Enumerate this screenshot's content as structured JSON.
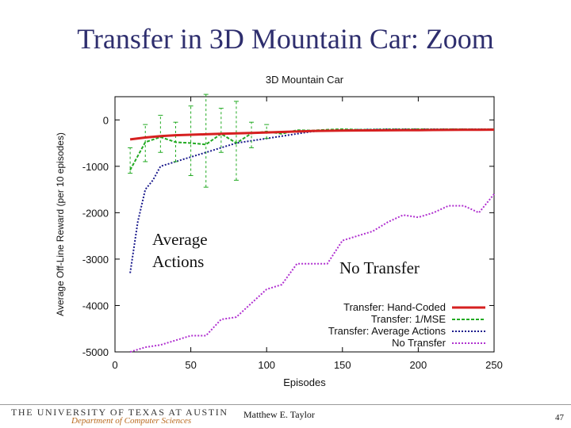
{
  "slide": {
    "title": "Transfer in 3D Mountain Car: Zoom",
    "annotation_left": "Average Actions",
    "annotation_right": "No Transfer"
  },
  "footer": {
    "university": "THE UNIVERSITY OF TEXAS AT AUSTIN",
    "department": "Department of Computer Sciences",
    "author": "Matthew E. Taylor",
    "page": "47"
  },
  "chart_data": {
    "type": "line",
    "title": "3D Mountain Car",
    "xlabel": "Episodes",
    "ylabel": "Average Off-Line Reward (per 10 episodes)",
    "xlim": [
      0,
      250
    ],
    "ylim": [
      -5000,
      500
    ],
    "xticks": [
      0,
      50,
      100,
      150,
      200,
      250
    ],
    "yticks": [
      0,
      -1000,
      -2000,
      -3000,
      -4000,
      -5000
    ],
    "legend_position": "bottom-right",
    "series": [
      {
        "name": "Transfer: Hand-Coded",
        "color": "#d62020",
        "style": "solid",
        "width": 3,
        "x": [
          10,
          20,
          30,
          40,
          50,
          60,
          70,
          80,
          90,
          100,
          110,
          120,
          130,
          140,
          150,
          160,
          170,
          180,
          190,
          200,
          210,
          220,
          230,
          240,
          250
        ],
        "y": [
          -420,
          -380,
          -350,
          -330,
          -320,
          -310,
          -300,
          -290,
          -280,
          -270,
          -260,
          -250,
          -240,
          -235,
          -230,
          -228,
          -226,
          -224,
          -222,
          -220,
          -218,
          -216,
          -214,
          -212,
          -210
        ]
      },
      {
        "name": "Transfer: 1/MSE",
        "color": "#22aa22",
        "style": "dashed",
        "width": 2,
        "x": [
          10,
          20,
          30,
          40,
          50,
          60,
          70,
          80,
          90,
          100,
          110,
          120,
          130,
          140,
          150,
          160,
          170,
          180,
          190,
          200,
          210,
          220,
          230,
          240,
          250
        ],
        "y": [
          -1080,
          -480,
          -370,
          -480,
          -500,
          -530,
          -300,
          -500,
          -290,
          -250,
          -300,
          -220,
          -230,
          -210,
          -200,
          -210,
          -210,
          -205,
          -205,
          -200,
          -205,
          -200,
          -200,
          -205,
          -200
        ],
        "error_bars": [
          {
            "x": 10,
            "low": -1150,
            "high": -600
          },
          {
            "x": 20,
            "low": -900,
            "high": -100
          },
          {
            "x": 30,
            "low": -700,
            "high": 100
          },
          {
            "x": 40,
            "low": -900,
            "high": -50
          },
          {
            "x": 50,
            "low": -1200,
            "high": 300
          },
          {
            "x": 60,
            "low": -1450,
            "high": 550
          },
          {
            "x": 70,
            "low": -700,
            "high": 250
          },
          {
            "x": 80,
            "low": -1300,
            "high": 400
          },
          {
            "x": 90,
            "low": -600,
            "high": -50
          },
          {
            "x": 100,
            "low": -400,
            "high": -100
          }
        ]
      },
      {
        "name": "Transfer: Average Actions",
        "color": "#1a1a8c",
        "style": "dotted",
        "width": 2,
        "x": [
          10,
          15,
          20,
          25,
          30,
          35,
          40,
          45,
          50,
          55,
          60,
          70,
          80,
          90,
          100,
          110,
          120,
          130,
          140,
          150,
          160,
          170,
          180,
          190,
          200,
          210,
          220,
          230,
          240,
          250
        ],
        "y": [
          -3300,
          -2200,
          -1500,
          -1300,
          -1000,
          -950,
          -900,
          -850,
          -800,
          -750,
          -700,
          -600,
          -500,
          -450,
          -400,
          -350,
          -300,
          -250,
          -230,
          -220,
          -210,
          -205,
          -200,
          -200,
          -200,
          -200,
          -200,
          -200,
          -200,
          -200
        ]
      },
      {
        "name": "No Transfer",
        "color": "#b030d0",
        "style": "dotted",
        "width": 2,
        "x": [
          10,
          20,
          30,
          40,
          50,
          60,
          70,
          80,
          90,
          100,
          110,
          120,
          130,
          140,
          150,
          160,
          170,
          180,
          190,
          200,
          210,
          220,
          230,
          240,
          250
        ],
        "y": [
          -5000,
          -4900,
          -4850,
          -4750,
          -4650,
          -4650,
          -4300,
          -4250,
          -3950,
          -3650,
          -3550,
          -3100,
          -3100,
          -3100,
          -2600,
          -2500,
          -2400,
          -2200,
          -2050,
          -2100,
          -2000,
          -1850,
          -1850,
          -2000,
          -1600
        ]
      }
    ]
  }
}
